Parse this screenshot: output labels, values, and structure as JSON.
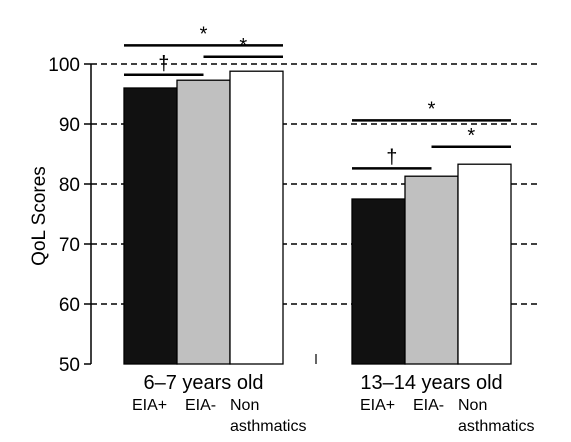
{
  "chart_data": {
    "type": "bar",
    "ylabel": "QoL Scores",
    "ylim": [
      50,
      100
    ],
    "yticks": [
      50,
      60,
      70,
      80,
      90,
      100
    ],
    "grid": "dashed horizontal",
    "groups": [
      {
        "label": "6–7 years old",
        "values": [
          96,
          97.3,
          98.8
        ]
      },
      {
        "label": "13–14 years old",
        "values": [
          77.5,
          81.3,
          83.3
        ]
      }
    ],
    "series": [
      {
        "name": "EIA+",
        "label_lines": [
          "EIA+"
        ],
        "color": "#111111"
      },
      {
        "name": "EIA-",
        "label_lines": [
          "EIA-"
        ],
        "color": "#c0c0c0"
      },
      {
        "name": "Non asthmatics",
        "label_lines": [
          "Non",
          "asthmatics"
        ],
        "color": "#ffffff"
      }
    ],
    "significance": [
      {
        "group": 0,
        "from": 0,
        "to": 2,
        "mark": "*",
        "level": 103.1
      },
      {
        "group": 0,
        "from": 0,
        "to": 1,
        "mark": "†",
        "level": 98.2
      },
      {
        "group": 0,
        "from": 1,
        "to": 2,
        "mark": "*",
        "level": 101.2
      },
      {
        "group": 1,
        "from": 0,
        "to": 2,
        "mark": "*",
        "level": 90.6
      },
      {
        "group": 1,
        "from": 0,
        "to": 1,
        "mark": "†",
        "level": 82.6
      },
      {
        "group": 1,
        "from": 1,
        "to": 2,
        "mark": "*",
        "level": 86.2
      }
    ]
  }
}
